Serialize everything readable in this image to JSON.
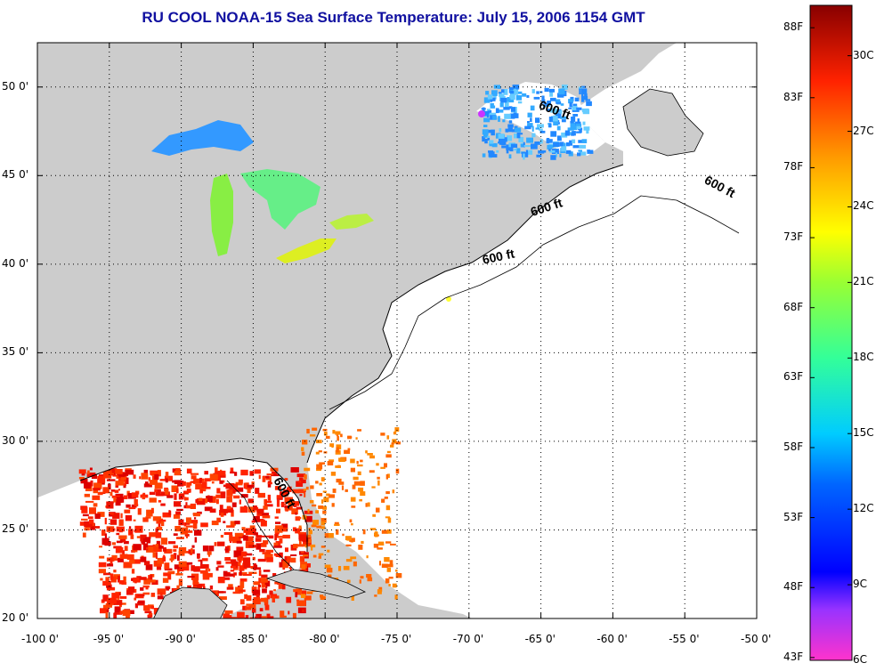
{
  "title": "RU COOL  NOAA-15  Sea Surface Temperature:  July 15, 2006 1154 GMT",
  "colors": {
    "title": "#1010a0",
    "land": "#cccccc",
    "ocean": "#ffffff",
    "grid": "#000000"
  },
  "map": {
    "lon_range": [
      -100,
      -50
    ],
    "lat_range": [
      20,
      52.5
    ],
    "lon_ticks": [
      {
        "value": -100,
        "label": "-100 0'"
      },
      {
        "value": -95,
        "label": "-95 0'"
      },
      {
        "value": -90,
        "label": "-90 0'"
      },
      {
        "value": -85,
        "label": "-85 0'"
      },
      {
        "value": -80,
        "label": "-80 0'"
      },
      {
        "value": -75,
        "label": "-75 0'"
      },
      {
        "value": -70,
        "label": "-70 0'"
      },
      {
        "value": -65,
        "label": "-65 0'"
      },
      {
        "value": -60,
        "label": "-60 0'"
      },
      {
        "value": -55,
        "label": "-55 0'"
      },
      {
        "value": -50,
        "label": "-50 0'"
      }
    ],
    "lat_ticks": [
      {
        "value": 20,
        "label": "20 0'"
      },
      {
        "value": 25,
        "label": "25 0'"
      },
      {
        "value": 30,
        "label": "30 0'"
      },
      {
        "value": 35,
        "label": "35 0'"
      },
      {
        "value": 40,
        "label": "40 0'"
      },
      {
        "value": 45,
        "label": "45 0'"
      },
      {
        "value": 50,
        "label": "50 0'"
      }
    ],
    "isobath_labels": [
      {
        "text": "600 ft",
        "lon": -65.2,
        "lat": 48.8,
        "angle": 20
      },
      {
        "text": "600 ft",
        "lon": -53.7,
        "lat": 44.6,
        "angle": 28
      },
      {
        "text": "600 ft",
        "lon": -65.6,
        "lat": 42.7,
        "angle": -18
      },
      {
        "text": "600 ft",
        "lon": -69.0,
        "lat": 40.0,
        "angle": -12
      },
      {
        "text": "600 ft",
        "lon": -83.6,
        "lat": 27.8,
        "angle": 62
      }
    ]
  },
  "colorbar": {
    "range_c": [
      6,
      32
    ],
    "labels_f": [
      "88F",
      "83F",
      "78F",
      "73F",
      "68F",
      "63F",
      "58F",
      "53F",
      "48F",
      "43F"
    ],
    "labels_c": [
      "30C",
      "27C",
      "24C",
      "21C",
      "18C",
      "15C",
      "12C",
      "9C",
      "6C"
    ],
    "stops": [
      {
        "c": 6,
        "color": "#ff33cc"
      },
      {
        "c": 8,
        "color": "#9933ff"
      },
      {
        "c": 9.5,
        "color": "#0000ff"
      },
      {
        "c": 13,
        "color": "#0066ff"
      },
      {
        "c": 15,
        "color": "#00ccff"
      },
      {
        "c": 18,
        "color": "#33ff99"
      },
      {
        "c": 21,
        "color": "#99ff33"
      },
      {
        "c": 23,
        "color": "#ffff00"
      },
      {
        "c": 26,
        "color": "#ff9900"
      },
      {
        "c": 29,
        "color": "#ff2200"
      },
      {
        "c": 32,
        "color": "#880000"
      }
    ]
  }
}
